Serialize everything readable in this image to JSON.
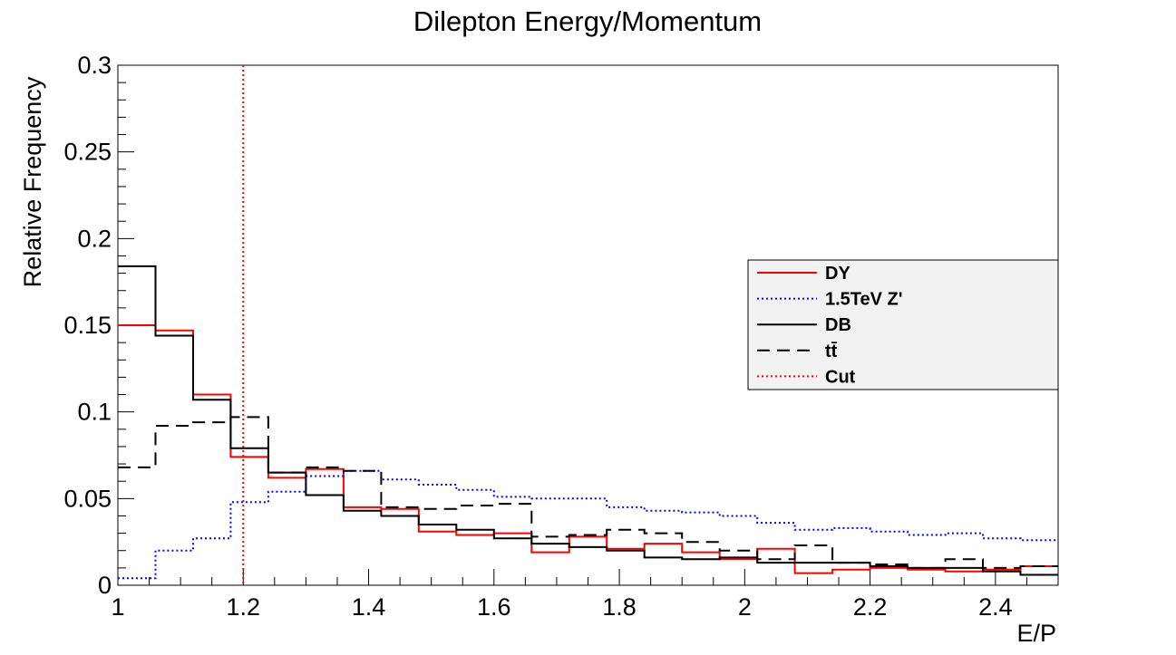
{
  "chart_data": {
    "type": "line",
    "title": "Dilepton Energy/Momentum",
    "xlabel": "E/P",
    "ylabel": "Relative Frequency",
    "xlim": [
      1.0,
      2.5
    ],
    "ylim": [
      0,
      0.3
    ],
    "x_ticks": [
      "1",
      "1.2",
      "1.4",
      "1.6",
      "1.8",
      "2",
      "2.2",
      "2.4"
    ],
    "y_ticks": [
      "0",
      "0.05",
      "0.1",
      "0.15",
      "0.2",
      "0.25",
      "0.3"
    ],
    "bin_edges": [
      1.0,
      1.06,
      1.12,
      1.18,
      1.24,
      1.3,
      1.36,
      1.42,
      1.48,
      1.54,
      1.6,
      1.66,
      1.72,
      1.78,
      1.84,
      1.9,
      1.96,
      2.02,
      2.08,
      2.14,
      2.2,
      2.26,
      2.32,
      2.38,
      2.44,
      2.5
    ],
    "series": [
      {
        "name": "DY",
        "color": "#ff0000",
        "style": "solid",
        "values": [
          0.15,
          0.147,
          0.11,
          0.074,
          0.062,
          0.067,
          0.045,
          0.044,
          0.031,
          0.029,
          0.03,
          0.019,
          0.028,
          0.021,
          0.024,
          0.019,
          0.015,
          0.021,
          0.007,
          0.009,
          0.01,
          0.009,
          0.008,
          0.009,
          0.011
        ]
      },
      {
        "name": "1.5TeV Z'",
        "color": "#0000ff",
        "style": "dotted",
        "values": [
          0.004,
          0.02,
          0.027,
          0.048,
          0.054,
          0.063,
          0.066,
          0.061,
          0.058,
          0.055,
          0.051,
          0.05,
          0.05,
          0.045,
          0.043,
          0.042,
          0.04,
          0.036,
          0.032,
          0.033,
          0.031,
          0.029,
          0.03,
          0.027,
          0.026
        ]
      },
      {
        "name": "DB",
        "color": "#000000",
        "style": "solid",
        "values": [
          0.184,
          0.144,
          0.107,
          0.079,
          0.065,
          0.052,
          0.043,
          0.04,
          0.035,
          0.032,
          0.027,
          0.024,
          0.022,
          0.02,
          0.016,
          0.015,
          0.016,
          0.013,
          0.013,
          0.013,
          0.011,
          0.01,
          0.01,
          0.008,
          0.006
        ]
      },
      {
        "name": "tt̄",
        "color": "#000000",
        "style": "dashed",
        "values": [
          0.068,
          0.092,
          0.094,
          0.097,
          0.065,
          0.068,
          0.066,
          0.045,
          0.044,
          0.046,
          0.047,
          0.028,
          0.029,
          0.032,
          0.03,
          0.025,
          0.02,
          0.015,
          0.023,
          0.013,
          0.012,
          0.01,
          0.015,
          0.01,
          0.011
        ]
      }
    ],
    "cut": {
      "name": "Cut",
      "x": 1.2,
      "color": "#ff0000",
      "style": "dotted"
    },
    "legend": {
      "placement": "right",
      "entries": [
        {
          "label": "DY",
          "color": "#ff0000",
          "style": "solid"
        },
        {
          "label": "1.5TeV Z'",
          "color": "#0000ff",
          "style": "dotted"
        },
        {
          "label": "DB",
          "color": "#000000",
          "style": "solid"
        },
        {
          "label": "tt̄",
          "color": "#000000",
          "style": "dashed"
        },
        {
          "label": "Cut",
          "color": "#ff0000",
          "style": "dotted"
        }
      ],
      "background": "#f2f2f2"
    },
    "grid": false
  }
}
